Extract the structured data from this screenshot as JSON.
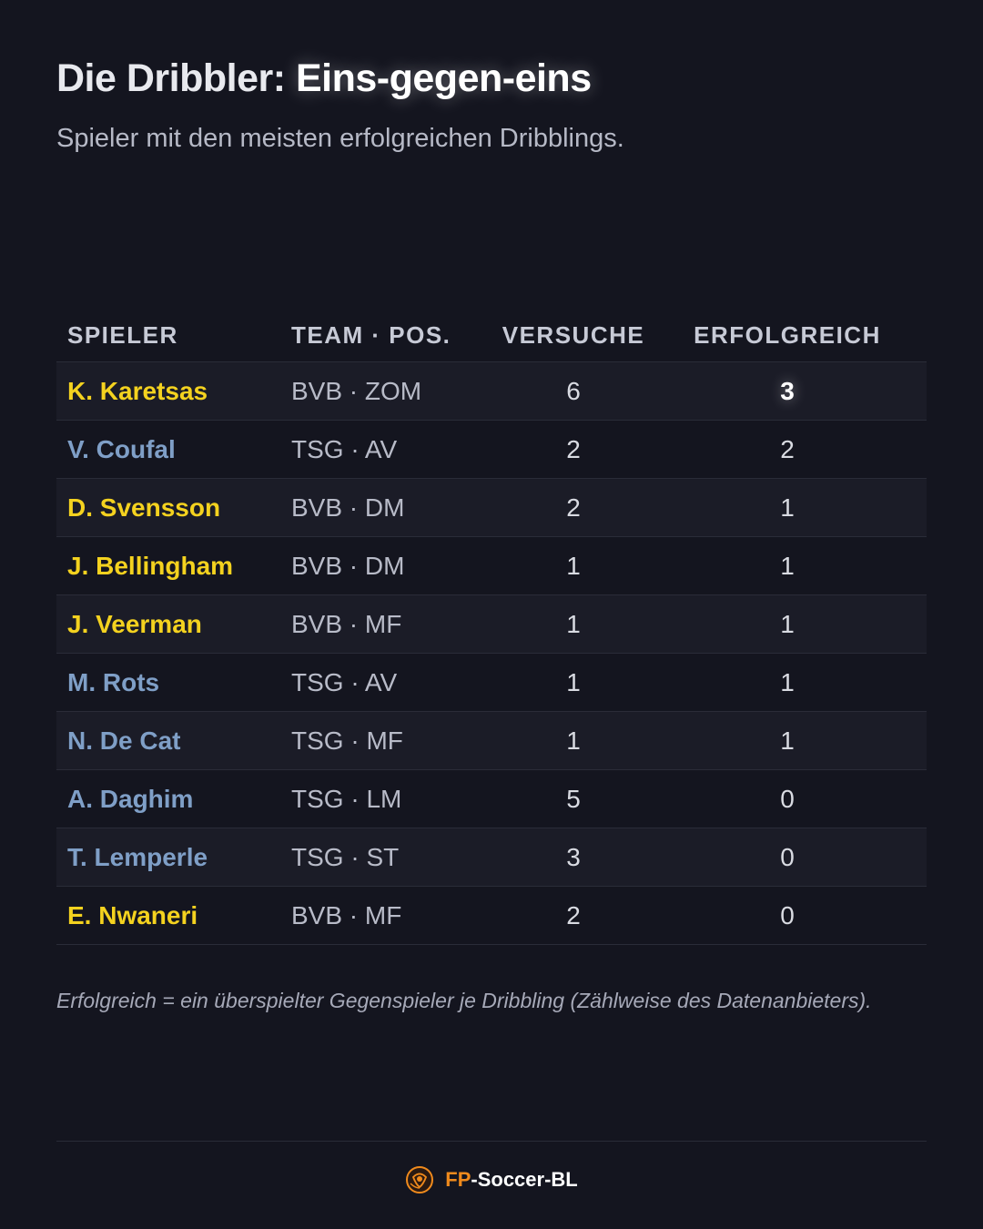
{
  "header": {
    "title_prefix": "Die Dribbler: ",
    "title_highlight": "Eins-gegen-eins",
    "subtitle": "Spieler mit den meisten erfolgreichen Dribblings."
  },
  "table": {
    "columns": [
      "SPIELER",
      "TEAM · POS.",
      "VERSUCHE",
      "ERFOLGREICH"
    ],
    "rows": [
      {
        "player": "K. Karetsas",
        "team_pos": "BVB · ZOM",
        "attempts": "6",
        "successful": "3",
        "club": "bvb"
      },
      {
        "player": "V. Coufal",
        "team_pos": "TSG · AV",
        "attempts": "2",
        "successful": "2",
        "club": "tsg"
      },
      {
        "player": "D. Svensson",
        "team_pos": "BVB · DM",
        "attempts": "2",
        "successful": "1",
        "club": "bvb"
      },
      {
        "player": "J. Bellingham",
        "team_pos": "BVB · DM",
        "attempts": "1",
        "successful": "1",
        "club": "bvb"
      },
      {
        "player": "J. Veerman",
        "team_pos": "BVB · MF",
        "attempts": "1",
        "successful": "1",
        "club": "bvb"
      },
      {
        "player": "M. Rots",
        "team_pos": "TSG · AV",
        "attempts": "1",
        "successful": "1",
        "club": "tsg"
      },
      {
        "player": "N. De Cat",
        "team_pos": "TSG · MF",
        "attempts": "1",
        "successful": "1",
        "club": "tsg"
      },
      {
        "player": "A. Daghim",
        "team_pos": "TSG · LM",
        "attempts": "5",
        "successful": "0",
        "club": "tsg"
      },
      {
        "player": "T. Lemperle",
        "team_pos": "TSG · ST",
        "attempts": "3",
        "successful": "0",
        "club": "tsg"
      },
      {
        "player": "E. Nwaneri",
        "team_pos": "BVB · MF",
        "attempts": "2",
        "successful": "0",
        "club": "bvb"
      }
    ]
  },
  "footnote": "Erfolgreich = ein überspielter Gegenspieler je Dribbling (Zählweise des Datenanbieters).",
  "brand": {
    "prefix": "FP",
    "rest": "-Soccer-BL",
    "logo_icon": "bl-ball-logo-icon"
  },
  "colors": {
    "background": "#14151f",
    "bvb": "#f4d21f",
    "tsg": "#7f9fc7",
    "brand_orange": "#f08a1c"
  }
}
